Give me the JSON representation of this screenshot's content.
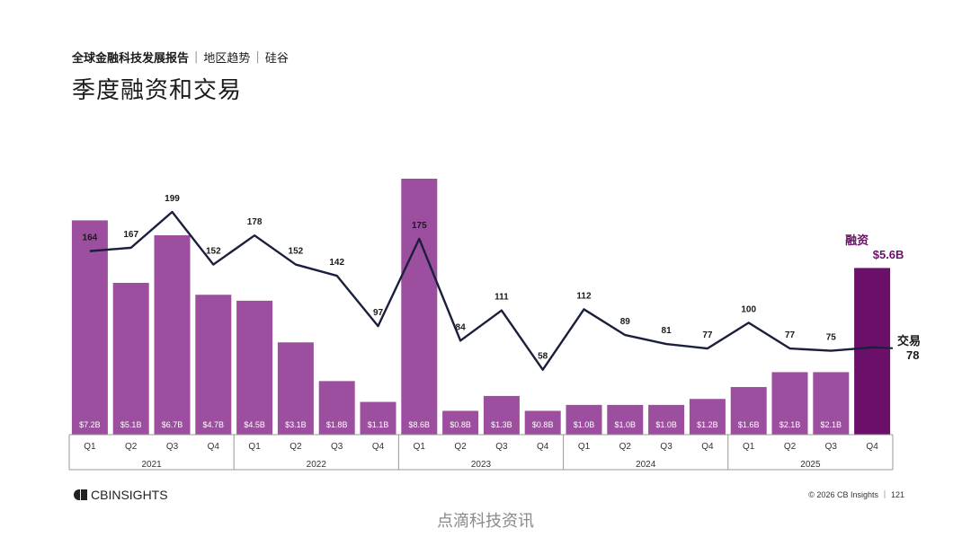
{
  "header": {
    "report": "全球金融科技发展报告",
    "region": "地区趋势",
    "city": "硅谷"
  },
  "title": "季度融资和交易",
  "chart_data": {
    "type": "bar",
    "categories": [
      "Q1",
      "Q2",
      "Q3",
      "Q4",
      "Q1",
      "Q2",
      "Q3",
      "Q4",
      "Q1",
      "Q2",
      "Q3",
      "Q4",
      "Q1",
      "Q2",
      "Q3",
      "Q4",
      "Q1",
      "Q2",
      "Q3",
      "Q4"
    ],
    "years": [
      "2021",
      "2022",
      "2023",
      "2024",
      "2025"
    ],
    "funding_labels": [
      "$7.2B",
      "$5.1B",
      "$6.7B",
      "$4.7B",
      "$4.5B",
      "$3.1B",
      "$1.8B",
      "$1.1B",
      "$8.6B",
      "$0.8B",
      "$1.3B",
      "$0.8B",
      "$1.0B",
      "$1.0B",
      "$1.0B",
      "$1.2B",
      "$1.6B",
      "$2.1B",
      "$2.1B"
    ],
    "series": [
      {
        "name": "融资",
        "type": "bar",
        "values": [
          7.2,
          5.1,
          6.7,
          4.7,
          4.5,
          3.1,
          1.8,
          1.1,
          8.6,
          0.8,
          1.3,
          0.8,
          1.0,
          1.0,
          1.0,
          1.2,
          1.6,
          2.1,
          2.1,
          5.6
        ],
        "color": "#9b4f9e",
        "highlight_color": "#6a0f6a"
      },
      {
        "name": "交易",
        "type": "line",
        "values": [
          164,
          167,
          199,
          152,
          178,
          152,
          142,
          97,
          175,
          84,
          111,
          58,
          112,
          89,
          81,
          77,
          100,
          77,
          75,
          78
        ],
        "color": "#1a1f3d"
      }
    ],
    "callouts": {
      "funding_label": "融资",
      "funding_value": "$5.6B",
      "deals_label": "交易",
      "deals_value": "78"
    },
    "ylim_funding": [
      0,
      8.6
    ],
    "ylim_deals": [
      0,
      200
    ]
  },
  "footer": {
    "logo_text": "CBINSIGHTS",
    "copyright": "© 2026 CB Insights ｜ 121"
  },
  "watermark": "点滴科技资讯"
}
